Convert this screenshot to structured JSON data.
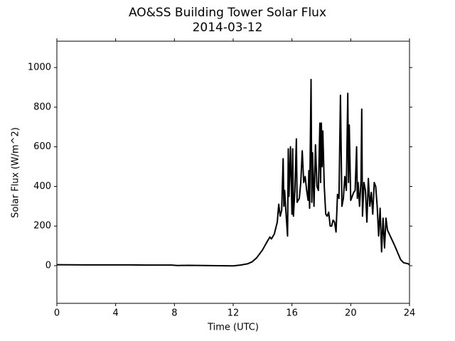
{
  "chart_data": {
    "type": "line",
    "title": "AO&SS Building Tower Solar Flux",
    "subtitle": "2014-03-12",
    "x_label": "Time (UTC)",
    "y_label": "Solar Flux (W/m^2)",
    "xlim": [
      0,
      24
    ],
    "xticks": [
      0,
      4,
      8,
      12,
      16,
      20,
      24
    ],
    "ylim": [
      -190,
      1133
    ],
    "yticks": [
      0,
      200,
      400,
      600,
      800,
      1000
    ],
    "grid": false,
    "series": [
      {
        "name": "Solar Flux",
        "color": "#000000",
        "x": [
          0,
          2,
          4,
          5,
          6,
          7,
          7.8,
          8.2,
          9,
          10,
          11,
          12,
          12.5,
          13,
          13.3,
          13.6,
          14,
          14.3,
          14.5,
          14.6,
          14.8,
          15,
          15.1,
          15.2,
          15.3,
          15.4,
          15.45,
          15.5,
          15.6,
          15.7,
          15.75,
          15.8,
          15.9,
          16,
          16.05,
          16.1,
          16.2,
          16.3,
          16.35,
          16.5,
          16.6,
          16.7,
          16.8,
          16.9,
          17,
          17.1,
          17.15,
          17.2,
          17.3,
          17.35,
          17.4,
          17.5,
          17.6,
          17.7,
          17.8,
          17.9,
          17.95,
          18,
          18.05,
          18.1,
          18.2,
          18.3,
          18.4,
          18.5,
          18.6,
          18.7,
          18.8,
          18.9,
          19,
          19.1,
          19.2,
          19.3,
          19.4,
          19.5,
          19.6,
          19.7,
          19.8,
          19.85,
          19.9,
          20,
          20.1,
          20.2,
          20.3,
          20.4,
          20.45,
          20.5,
          20.6,
          20.7,
          20.75,
          20.8,
          20.9,
          21,
          21.1,
          21.2,
          21.3,
          21.4,
          21.5,
          21.6,
          21.7,
          21.8,
          21.9,
          22,
          22.1,
          22.2,
          22.3,
          22.4,
          22.5,
          23,
          23.4,
          23.6,
          23.9,
          24
        ],
        "values": [
          5,
          4,
          4,
          4,
          3,
          3,
          3,
          1,
          2,
          1,
          0,
          -1,
          3,
          10,
          20,
          40,
          80,
          120,
          145,
          135,
          160,
          220,
          310,
          250,
          280,
          540,
          300,
          380,
          260,
          150,
          590,
          350,
          600,
          260,
          590,
          250,
          380,
          640,
          320,
          340,
          420,
          580,
          420,
          450,
          380,
          330,
          480,
          290,
          940,
          320,
          570,
          300,
          610,
          400,
          380,
          720,
          420,
          720,
          500,
          680,
          400,
          260,
          250,
          270,
          200,
          200,
          230,
          220,
          170,
          360,
          340,
          860,
          300,
          340,
          450,
          380,
          870,
          420,
          710,
          330,
          350,
          370,
          380,
          600,
          340,
          420,
          300,
          430,
          790,
          250,
          420,
          380,
          220,
          440,
          300,
          370,
          260,
          420,
          400,
          300,
          150,
          290,
          70,
          240,
          90,
          240,
          180,
          100,
          30,
          15,
          10,
          5
        ]
      }
    ]
  }
}
